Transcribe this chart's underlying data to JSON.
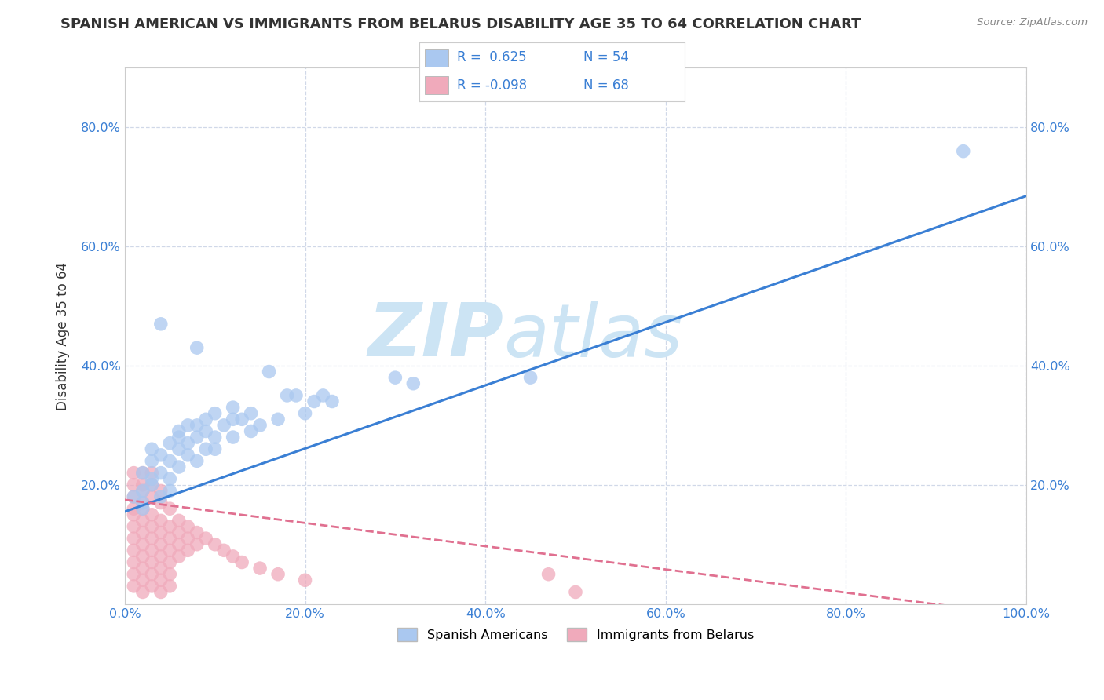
{
  "title": "SPANISH AMERICAN VS IMMIGRANTS FROM BELARUS DISABILITY AGE 35 TO 64 CORRELATION CHART",
  "source": "Source: ZipAtlas.com",
  "ylabel": "Disability Age 35 to 64",
  "watermark_line1": "ZIP",
  "watermark_line2": "atlas",
  "r_blue": 0.625,
  "n_blue": 54,
  "r_pink": -0.098,
  "n_pink": 68,
  "xlim": [
    0.0,
    1.0
  ],
  "ylim": [
    0.0,
    0.9
  ],
  "xticks": [
    0.0,
    0.2,
    0.4,
    0.6,
    0.8,
    1.0
  ],
  "yticks": [
    0.2,
    0.4,
    0.6,
    0.8
  ],
  "xticklabels": [
    "0.0%",
    "20.0%",
    "40.0%",
    "60.0%",
    "80.0%",
    "100.0%"
  ],
  "yticklabels": [
    "20.0%",
    "40.0%",
    "60.0%",
    "80.0%"
  ],
  "blue_scatter": [
    [
      0.01,
      0.18
    ],
    [
      0.02,
      0.17
    ],
    [
      0.02,
      0.19
    ],
    [
      0.02,
      0.22
    ],
    [
      0.02,
      0.16
    ],
    [
      0.03,
      0.2
    ],
    [
      0.03,
      0.24
    ],
    [
      0.03,
      0.21
    ],
    [
      0.03,
      0.26
    ],
    [
      0.04,
      0.18
    ],
    [
      0.04,
      0.22
    ],
    [
      0.04,
      0.25
    ],
    [
      0.04,
      0.47
    ],
    [
      0.05,
      0.24
    ],
    [
      0.05,
      0.19
    ],
    [
      0.05,
      0.27
    ],
    [
      0.05,
      0.21
    ],
    [
      0.06,
      0.26
    ],
    [
      0.06,
      0.23
    ],
    [
      0.06,
      0.28
    ],
    [
      0.06,
      0.29
    ],
    [
      0.07,
      0.27
    ],
    [
      0.07,
      0.3
    ],
    [
      0.07,
      0.25
    ],
    [
      0.08,
      0.28
    ],
    [
      0.08,
      0.24
    ],
    [
      0.08,
      0.3
    ],
    [
      0.08,
      0.43
    ],
    [
      0.09,
      0.29
    ],
    [
      0.09,
      0.26
    ],
    [
      0.09,
      0.31
    ],
    [
      0.1,
      0.28
    ],
    [
      0.1,
      0.26
    ],
    [
      0.1,
      0.32
    ],
    [
      0.11,
      0.3
    ],
    [
      0.12,
      0.31
    ],
    [
      0.12,
      0.28
    ],
    [
      0.12,
      0.33
    ],
    [
      0.13,
      0.31
    ],
    [
      0.14,
      0.29
    ],
    [
      0.14,
      0.32
    ],
    [
      0.15,
      0.3
    ],
    [
      0.16,
      0.39
    ],
    [
      0.17,
      0.31
    ],
    [
      0.18,
      0.35
    ],
    [
      0.19,
      0.35
    ],
    [
      0.2,
      0.32
    ],
    [
      0.21,
      0.34
    ],
    [
      0.22,
      0.35
    ],
    [
      0.23,
      0.34
    ],
    [
      0.3,
      0.38
    ],
    [
      0.32,
      0.37
    ],
    [
      0.93,
      0.76
    ],
    [
      0.45,
      0.38
    ]
  ],
  "pink_scatter": [
    [
      0.01,
      0.18
    ],
    [
      0.01,
      0.15
    ],
    [
      0.01,
      0.2
    ],
    [
      0.01,
      0.16
    ],
    [
      0.01,
      0.22
    ],
    [
      0.01,
      0.13
    ],
    [
      0.01,
      0.11
    ],
    [
      0.01,
      0.09
    ],
    [
      0.01,
      0.07
    ],
    [
      0.01,
      0.05
    ],
    [
      0.01,
      0.03
    ],
    [
      0.02,
      0.17
    ],
    [
      0.02,
      0.14
    ],
    [
      0.02,
      0.19
    ],
    [
      0.02,
      0.12
    ],
    [
      0.02,
      0.1
    ],
    [
      0.02,
      0.08
    ],
    [
      0.02,
      0.06
    ],
    [
      0.02,
      0.04
    ],
    [
      0.02,
      0.02
    ],
    [
      0.02,
      0.2
    ],
    [
      0.02,
      0.22
    ],
    [
      0.02,
      0.16
    ],
    [
      0.03,
      0.18
    ],
    [
      0.03,
      0.15
    ],
    [
      0.03,
      0.13
    ],
    [
      0.03,
      0.11
    ],
    [
      0.03,
      0.09
    ],
    [
      0.03,
      0.07
    ],
    [
      0.03,
      0.05
    ],
    [
      0.03,
      0.03
    ],
    [
      0.03,
      0.22
    ],
    [
      0.03,
      0.2
    ],
    [
      0.04,
      0.17
    ],
    [
      0.04,
      0.14
    ],
    [
      0.04,
      0.12
    ],
    [
      0.04,
      0.1
    ],
    [
      0.04,
      0.08
    ],
    [
      0.04,
      0.06
    ],
    [
      0.04,
      0.04
    ],
    [
      0.04,
      0.02
    ],
    [
      0.04,
      0.19
    ],
    [
      0.05,
      0.16
    ],
    [
      0.05,
      0.13
    ],
    [
      0.05,
      0.11
    ],
    [
      0.05,
      0.09
    ],
    [
      0.05,
      0.07
    ],
    [
      0.05,
      0.05
    ],
    [
      0.05,
      0.03
    ],
    [
      0.06,
      0.14
    ],
    [
      0.06,
      0.12
    ],
    [
      0.06,
      0.1
    ],
    [
      0.06,
      0.08
    ],
    [
      0.07,
      0.13
    ],
    [
      0.07,
      0.11
    ],
    [
      0.07,
      0.09
    ],
    [
      0.08,
      0.12
    ],
    [
      0.08,
      0.1
    ],
    [
      0.09,
      0.11
    ],
    [
      0.1,
      0.1
    ],
    [
      0.11,
      0.09
    ],
    [
      0.12,
      0.08
    ],
    [
      0.13,
      0.07
    ],
    [
      0.15,
      0.06
    ],
    [
      0.17,
      0.05
    ],
    [
      0.2,
      0.04
    ],
    [
      0.47,
      0.05
    ],
    [
      0.5,
      0.02
    ]
  ],
  "blue_color": "#aac8f0",
  "pink_color": "#f0aabb",
  "blue_line_color": "#3a7fd4",
  "pink_line_color": "#e07090",
  "grid_color": "#d0d8e8",
  "tick_color": "#3a7fd4",
  "legend_blue_label": "Spanish Americans",
  "legend_pink_label": "Immigrants from Belarus",
  "title_color": "#333333",
  "source_color": "#888888",
  "watermark_color": "#cce4f4"
}
